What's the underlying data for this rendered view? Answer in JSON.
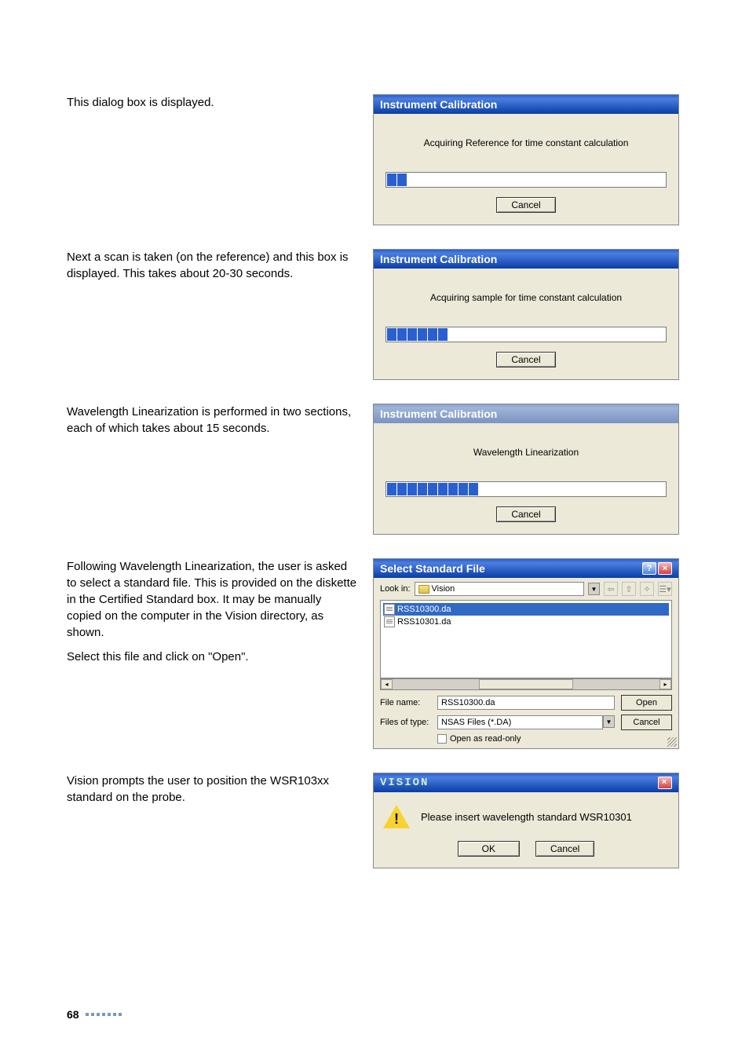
{
  "body": [
    {
      "left_text": "This dialog box is displayed.",
      "dialog": {
        "title": "Instrument Calibration",
        "active": true,
        "message": "Acquiring Reference for time constant calculation",
        "progress_blocks": 2,
        "cancel_label": "Cancel"
      }
    },
    {
      "left_text": "Next a scan is taken (on the reference) and this box is displayed. This takes about 20-30 seconds.",
      "dialog": {
        "title": "Instrument Calibration",
        "active": true,
        "message": "Acquiring sample for time constant calculation",
        "progress_blocks": 6,
        "cancel_label": "Cancel"
      }
    },
    {
      "left_text": "Wavelength Linearization is performed in two sections, each of which takes about 15 seconds.",
      "dialog": {
        "title": "Instrument Calibration",
        "active": false,
        "message": "Wavelength Linearization",
        "progress_blocks": 9,
        "cancel_label": "Cancel"
      }
    }
  ],
  "filedlg_row": {
    "left_text_1": "Following Wavelength Linearization, the user is asked to select a standard file. This is provided on the diskette in the Certified Standard box. It may be manually copied on the computer in the Vision directory, as shown.",
    "left_text_2": "Select this file and click on \"Open\"."
  },
  "filedlg": {
    "title": "Select Standard File",
    "lookin_label": "Look in:",
    "lookin_value": "Vision",
    "files": [
      "RSS10300.da",
      "RSS10301.da"
    ],
    "selected_index": 0,
    "filename_label": "File name:",
    "filename_value": "RSS10300.da",
    "filetype_label": "Files of type:",
    "filetype_value": "NSAS Files (*.DA)",
    "open_label": "Open",
    "cancel_label": "Cancel",
    "readonly_label": "Open as read-only"
  },
  "vision_row": {
    "left_text": "Vision prompts the user to position the WSR103xx standard on the probe."
  },
  "vision": {
    "title": "VISION",
    "message": "Please insert wavelength standard WSR10301",
    "ok_label": "OK",
    "cancel_label": "Cancel"
  },
  "colors": {
    "titlebar_active": "#2a5fd0",
    "titlebar_inactive": "#8ca5d1",
    "dialog_bg": "#ece9d8",
    "progress_block": "#2a5fd0",
    "page_dots": "#7a98b5"
  },
  "page_number": "68",
  "dot_count": 7
}
